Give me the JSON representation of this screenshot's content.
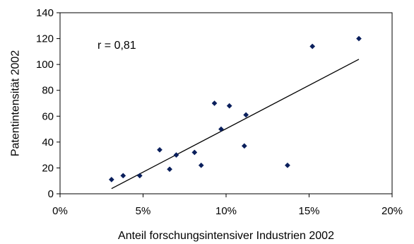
{
  "chart_data": {
    "type": "scatter",
    "title": "",
    "xlabel": "Anteil forschungsintensiver Industrien 2002",
    "ylabel": "Patentintensität 2002",
    "xlim": [
      0,
      0.2
    ],
    "ylim": [
      0,
      140
    ],
    "x_ticks": [
      0,
      0.05,
      0.1,
      0.15,
      0.2
    ],
    "x_tick_labels": [
      "0%",
      "5%",
      "10%",
      "15%",
      "20%"
    ],
    "y_ticks": [
      0,
      20,
      40,
      60,
      80,
      100,
      120,
      140
    ],
    "y_tick_labels": [
      "0",
      "20",
      "40",
      "60",
      "80",
      "100",
      "120",
      "140"
    ],
    "grid": false,
    "legend": "none",
    "annotation": "r = 0,81",
    "marker_color": "#0a1f5c",
    "series": [
      {
        "name": "",
        "points": [
          {
            "x": 0.031,
            "y": 11
          },
          {
            "x": 0.038,
            "y": 14
          },
          {
            "x": 0.048,
            "y": 14
          },
          {
            "x": 0.06,
            "y": 34
          },
          {
            "x": 0.066,
            "y": 19
          },
          {
            "x": 0.07,
            "y": 30
          },
          {
            "x": 0.081,
            "y": 32
          },
          {
            "x": 0.085,
            "y": 22
          },
          {
            "x": 0.093,
            "y": 70
          },
          {
            "x": 0.097,
            "y": 50
          },
          {
            "x": 0.102,
            "y": 68
          },
          {
            "x": 0.111,
            "y": 37
          },
          {
            "x": 0.112,
            "y": 61
          },
          {
            "x": 0.137,
            "y": 22
          },
          {
            "x": 0.152,
            "y": 114
          },
          {
            "x": 0.18,
            "y": 120
          }
        ]
      }
    ],
    "trendline": {
      "x": [
        0.031,
        0.18
      ],
      "y": [
        4,
        104
      ]
    }
  }
}
